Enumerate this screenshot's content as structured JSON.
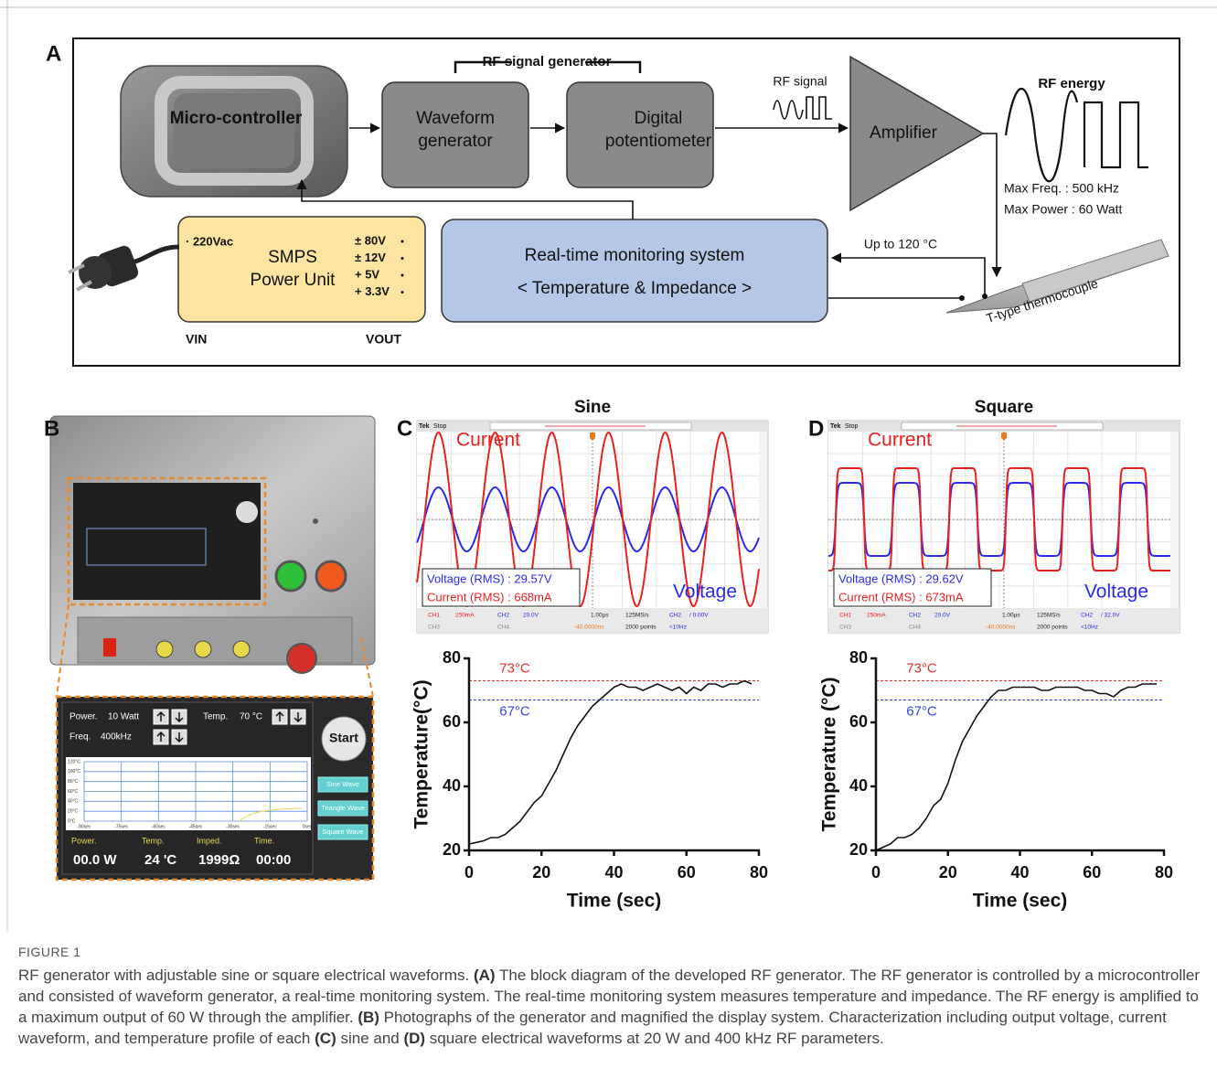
{
  "panel_a": {
    "label": "A",
    "microcontroller": "Micro-controller",
    "rf_signal_generator": "RF signal generator",
    "waveform_generator": [
      "Waveform",
      "generator"
    ],
    "digital_potentiometer": [
      "Digital",
      "potentiometer"
    ],
    "rf_signal": "RF signal",
    "amplifier": "Amplifier",
    "rf_energy": "RF energy",
    "max_freq": "Max Freq. : 500 kHz",
    "max_power": "Max Power : 60 Watt",
    "smps": {
      "input": "· 220Vac",
      "name": [
        "SMPS",
        "Power Unit"
      ],
      "outputs": [
        "± 80V",
        "± 12V",
        "+ 5V",
        "+ 3.3V"
      ],
      "vin": "VIN",
      "vout": "VOUT"
    },
    "monitoring": [
      "Real-time monitoring system",
      "< Temperature & Impedance >"
    ],
    "up_to": "Up to 120 °C",
    "thermocouple": "T-type thermocouple"
  },
  "panel_b": {
    "label": "B",
    "display": {
      "power_label": "Power.",
      "power_value": "10 Watt",
      "temp_label": "Temp.",
      "temp_value": "70 °C",
      "freq_label": "Freq.",
      "freq_value": "400kHz",
      "start": "Start",
      "y_labels": [
        "120°C",
        "100°C",
        "80°C",
        "60°C",
        "40°C",
        "20°C",
        "0°C"
      ],
      "x_labels": [
        "-90sec",
        "-75sec",
        "-60sec",
        "-45sec",
        "-30sec",
        "-15sec",
        "0sec"
      ],
      "buttons": [
        "Sine Wave",
        "Triangle Wave",
        "Square Wave"
      ],
      "readout_labels": [
        "Power.",
        "Temp.",
        "Imped.",
        "Time."
      ],
      "readout_values": [
        "00.0 W",
        "24 'C",
        "1999Ω",
        "00:00"
      ]
    }
  },
  "panel_c": {
    "label": "C",
    "title": "Sine",
    "scope": {
      "tek": "Tek",
      "stop": "Stop",
      "current": "Current",
      "voltage": "Voltage",
      "rms": [
        "Voltage (RMS) : 29.57V",
        "Current (RMS) : 668mA"
      ],
      "status": [
        "CH1",
        "250mA",
        "CH2",
        "20.0V",
        "1.00µs",
        "125MS/s",
        "CH2",
        "/ 0.00V",
        "CH3",
        "CH4",
        "-40.0000ns",
        "2000 points",
        "<10Hz"
      ]
    }
  },
  "panel_d": {
    "label": "D",
    "title": "Square",
    "scope": {
      "tek": "Tek",
      "stop": "Stop",
      "current": "Current",
      "voltage": "Voltage",
      "rms": [
        "Voltage (RMS) : 29.62V",
        "Current (RMS) : 673mA"
      ],
      "status": [
        "CH1",
        "250mA",
        "CH2",
        "20.0V",
        "1.00µs",
        "125MS/s",
        "CH2",
        "/ 32.0V",
        "CH3",
        "CH4",
        "-40.0000ns",
        "2000 points",
        "<10Hz"
      ]
    }
  },
  "chart_data": [
    {
      "type": "line",
      "x_label": "Time (sec)",
      "y_label": "Temperature(°C)",
      "x": [
        0,
        2,
        4,
        6,
        8,
        10,
        12,
        14,
        16,
        18,
        20,
        22,
        24,
        26,
        28,
        30,
        32,
        34,
        36,
        38,
        40,
        42,
        44,
        46,
        48,
        50,
        52,
        54,
        56,
        58,
        60,
        62,
        64,
        66,
        68,
        70,
        72,
        74,
        76,
        78
      ],
      "values": [
        22,
        22.5,
        23,
        24,
        24,
        25,
        27,
        29,
        32,
        35,
        37,
        41,
        45,
        50,
        55,
        59,
        62,
        65,
        67,
        69,
        71,
        72,
        71,
        71,
        70,
        71,
        72,
        71,
        70,
        71,
        69,
        71,
        70,
        72,
        72,
        71,
        72,
        72,
        73,
        72
      ],
      "color": "#111111",
      "xlim": [
        0,
        80
      ],
      "xticks": [
        0,
        20,
        40,
        60,
        80
      ],
      "ylim": [
        20,
        80
      ],
      "yticks": [
        20,
        40,
        60,
        80
      ],
      "reference_lines": [
        {
          "value": 73,
          "label": "73°C",
          "color": "#e03030"
        },
        {
          "value": 67,
          "label": "67°C",
          "color": "#3048e0"
        }
      ]
    },
    {
      "type": "line",
      "x_label": "Time (sec)",
      "y_label": "Temperature (°C)",
      "x": [
        0,
        2,
        4,
        6,
        8,
        10,
        12,
        14,
        16,
        18,
        20,
        22,
        24,
        26,
        28,
        30,
        32,
        34,
        36,
        38,
        40,
        42,
        44,
        46,
        48,
        50,
        52,
        54,
        56,
        58,
        60,
        62,
        64,
        66,
        68,
        70,
        72,
        74,
        76,
        78
      ],
      "values": [
        20,
        21,
        22,
        24,
        24,
        25,
        27,
        30,
        34,
        36,
        41,
        48,
        54,
        58,
        62,
        65,
        68,
        70,
        70,
        71,
        71,
        71,
        71,
        70,
        70,
        71,
        71,
        71,
        71,
        70,
        70,
        69,
        69,
        68,
        70,
        71,
        71,
        72,
        72,
        72
      ],
      "color": "#111111",
      "xlim": [
        0,
        80
      ],
      "xticks": [
        0,
        20,
        40,
        60,
        80
      ],
      "ylim": [
        20,
        80
      ],
      "yticks": [
        20,
        40,
        60,
        80
      ],
      "reference_lines": [
        {
          "value": 73,
          "label": "73°C",
          "color": "#e03030"
        },
        {
          "value": 67,
          "label": "67°C",
          "color": "#3048e0"
        }
      ]
    }
  ],
  "caption": {
    "figure": "FIGURE 1",
    "segments": [
      {
        "text": "RF generator with adjustable sine or square electrical waveforms. ",
        "bold": false
      },
      {
        "text": "(A)",
        "bold": true
      },
      {
        "text": " The block diagram of the developed RF generator. The RF generator is controlled by a microcontroller and consisted of waveform generator, a real-time monitoring system. The real-time monitoring system measures temperature and impedance. The RF energy is amplified to a maximum output of 60 W through the amplifier. ",
        "bold": false
      },
      {
        "text": "(B)",
        "bold": true
      },
      {
        "text": " Photographs of the generator and magnified the display system. Characterization including output voltage, current waveform, and temperature profile of each ",
        "bold": false
      },
      {
        "text": "(C)",
        "bold": true
      },
      {
        "text": " sine and ",
        "bold": false
      },
      {
        "text": "(D)",
        "bold": true
      },
      {
        "text": " square electrical waveforms at 20 W and 400 kHz RF parameters.",
        "bold": false
      }
    ]
  }
}
